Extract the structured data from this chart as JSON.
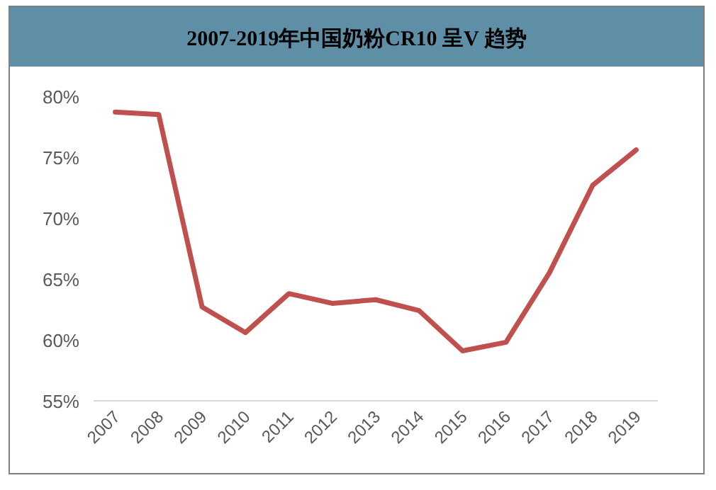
{
  "chart_data": {
    "type": "line",
    "title": "2007-2019年中国奶粉CR10 呈V 趋势",
    "categories": [
      "2007",
      "2008",
      "2009",
      "2010",
      "2011",
      "2012",
      "2013",
      "2014",
      "2015",
      "2016",
      "2017",
      "2018",
      "2019"
    ],
    "series": [
      {
        "color": "#c0504d",
        "values": [
          78.7,
          78.5,
          62.7,
          60.6,
          63.8,
          63.0,
          63.3,
          62.4,
          59.1,
          59.8,
          65.5,
          72.7,
          75.6
        ]
      }
    ],
    "ylim": [
      55,
      80
    ],
    "yticks": [
      {
        "value": 55,
        "label": "55%"
      },
      {
        "value": 60,
        "label": "60%"
      },
      {
        "value": 65,
        "label": "65%"
      },
      {
        "value": 70,
        "label": "70%"
      },
      {
        "value": 75,
        "label": "75%"
      },
      {
        "value": 80,
        "label": "80%"
      }
    ],
    "grid": false,
    "marker": "none",
    "line_style": "solid"
  }
}
